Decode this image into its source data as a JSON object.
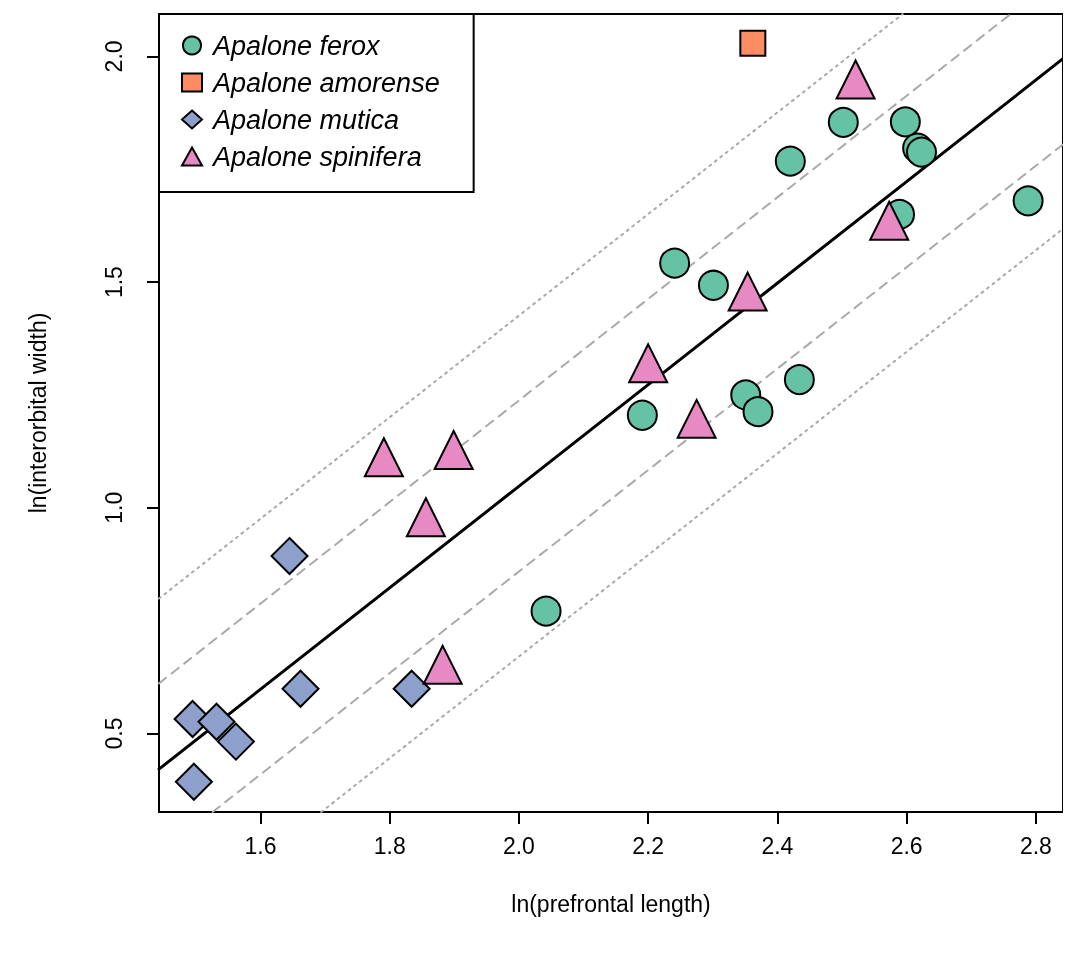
{
  "chart_data": {
    "type": "scatter",
    "xlabel": "ln(prefrontal length)",
    "ylabel": "ln(interorbital width)",
    "xlim": [
      1.443,
      2.842
    ],
    "ylim": [
      0.326,
      2.094
    ],
    "xticks": [
      1.6,
      1.8,
      {
        "value": 2,
        "label": "2.0"
      },
      2.2,
      2.4,
      2.6,
      2.8
    ],
    "yticks": [
      0.5,
      {
        "value": 1,
        "label": "1.0"
      },
      1.5,
      {
        "value": 2,
        "label": "2.0"
      }
    ],
    "grid": false,
    "legend": "top left",
    "series": [
      {
        "name": "Apalone ferox",
        "color": "#66c2a5",
        "marker": "circle",
        "x": [
          2.502,
          2.598,
          2.617,
          2.623,
          2.42,
          2.788,
          2.589,
          2.241,
          2.301,
          2.191,
          2.351,
          2.37,
          2.434,
          2.042
        ],
        "values": [
          1.854,
          1.855,
          1.797,
          1.788,
          1.768,
          1.68,
          1.65,
          1.542,
          1.493,
          1.205,
          1.25,
          1.213,
          1.284,
          0.771
        ]
      },
      {
        "name": "Apalone amorense",
        "color": "#fc8d62",
        "marker": "square",
        "x": [
          2.362
        ],
        "values": [
          2.029
        ]
      },
      {
        "name": "Apalone mutica",
        "color": "#8da0cb",
        "marker": "diamond",
        "x": [
          1.645,
          1.662,
          1.834,
          1.495,
          1.532,
          1.562,
          1.497
        ],
        "values": [
          0.893,
          0.599,
          0.599,
          0.532,
          0.526,
          0.482,
          0.393
        ]
      },
      {
        "name": "Apalone spinifera",
        "color": "#e78ac3",
        "marker": "triangle",
        "x": [
          2.521,
          2.573,
          2.354,
          2.2,
          2.275,
          1.791,
          1.899,
          1.856,
          1.882
        ],
        "values": [
          1.949,
          1.636,
          1.479,
          1.32,
          1.197,
          1.112,
          1.128,
          0.979,
          0.652
        ]
      },
      {
        "type": "line",
        "color": "#000000",
        "marker": "none",
        "line_style": "solid",
        "x": [
          1.443,
          2.842
        ],
        "values": [
          0.421,
          1.995
        ]
      },
      {
        "type": "line",
        "color": "#aaaaaa",
        "marker": "none",
        "line_style": "dashed",
        "x": [
          1.443,
          2.761
        ],
        "values": [
          0.611,
          2.094
        ]
      },
      {
        "type": "line",
        "color": "#aaaaaa",
        "marker": "none",
        "line_style": "dashed",
        "x": [
          1.526,
          2.842
        ],
        "values": [
          0.326,
          1.805
        ]
      },
      {
        "type": "line",
        "color": "#aaaaaa",
        "marker": "none",
        "line_style": "dotted",
        "x": [
          1.443,
          2.594
        ],
        "values": [
          0.799,
          2.094
        ]
      },
      {
        "type": "line",
        "color": "#aaaaaa",
        "marker": "none",
        "line_style": "dotted",
        "x": [
          1.694,
          2.842
        ],
        "values": [
          0.326,
          1.618
        ]
      }
    ]
  }
}
